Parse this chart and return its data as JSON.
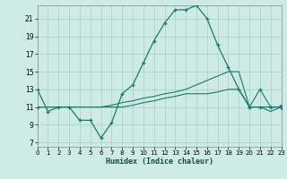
{
  "xlabel": "Humidex (Indice chaleur)",
  "bg_color": "#ceeae4",
  "grid_color": "#aed4cc",
  "line_color": "#1a7a6e",
  "x_ticks": [
    0,
    1,
    2,
    3,
    4,
    5,
    6,
    7,
    8,
    9,
    10,
    11,
    12,
    13,
    14,
    15,
    16,
    17,
    18,
    19,
    20,
    21,
    22,
    23
  ],
  "y_ticks": [
    7,
    9,
    11,
    13,
    15,
    17,
    19,
    21
  ],
  "xlim": [
    0,
    23
  ],
  "ylim": [
    6.5,
    22.5
  ],
  "s1_x": [
    0,
    1,
    2,
    3,
    4,
    5,
    6,
    7,
    8,
    9,
    10,
    11,
    12,
    13,
    14,
    15,
    16,
    17,
    18,
    19,
    20,
    21,
    22,
    23
  ],
  "s1_y": [
    13.0,
    10.5,
    11.0,
    11.0,
    9.5,
    9.5,
    7.5,
    9.2,
    12.5,
    13.5,
    16.0,
    18.5,
    20.5,
    22.0,
    22.0,
    22.5,
    21.0,
    18.0,
    15.5,
    13.0,
    11.0,
    11.0,
    11.0,
    11.0
  ],
  "s2_x": [
    0,
    1,
    2,
    3,
    4,
    5,
    6,
    7,
    8,
    9,
    10,
    11,
    12,
    13,
    14,
    15,
    16,
    17,
    18,
    19,
    20,
    21,
    22,
    23
  ],
  "s2_y": [
    11.0,
    11.0,
    11.0,
    11.0,
    11.0,
    11.0,
    11.0,
    11.2,
    11.5,
    11.7,
    12.0,
    12.2,
    12.5,
    12.7,
    13.0,
    13.5,
    14.0,
    14.5,
    15.0,
    15.0,
    11.0,
    13.0,
    11.0,
    11.0
  ],
  "s3_x": [
    0,
    1,
    2,
    3,
    4,
    5,
    6,
    7,
    8,
    9,
    10,
    11,
    12,
    13,
    14,
    15,
    16,
    17,
    18,
    19,
    20,
    21,
    22,
    23
  ],
  "s3_y": [
    11.0,
    11.0,
    11.0,
    11.0,
    11.0,
    11.0,
    11.0,
    11.0,
    11.0,
    11.2,
    11.5,
    11.7,
    12.0,
    12.2,
    12.5,
    12.5,
    12.5,
    12.7,
    13.0,
    13.0,
    11.0,
    11.0,
    10.5,
    11.0
  ]
}
